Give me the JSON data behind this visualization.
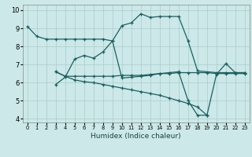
{
  "xlabel": "Humidex (Indice chaleur)",
  "xlim": [
    -0.5,
    23.5
  ],
  "ylim": [
    3.8,
    10.3
  ],
  "xticks": [
    0,
    1,
    2,
    3,
    4,
    5,
    6,
    7,
    8,
    9,
    10,
    11,
    12,
    13,
    14,
    15,
    16,
    17,
    18,
    19,
    20,
    21,
    22,
    23
  ],
  "yticks": [
    4,
    5,
    6,
    7,
    8,
    9,
    10
  ],
  "bg_color": "#cce8e8",
  "grid_color": "#aacccc",
  "line_color": "#1a6060",
  "series": [
    {
      "x": [
        0,
        1,
        2,
        3,
        4,
        5,
        6,
        7,
        8,
        9,
        10,
        11,
        12,
        13,
        14,
        15,
        16,
        17,
        18,
        20,
        21,
        22,
        23
      ],
      "y": [
        9.1,
        8.55,
        8.4,
        8.4,
        8.4,
        8.4,
        8.4,
        8.4,
        8.4,
        8.3,
        9.15,
        9.3,
        9.8,
        9.6,
        9.65,
        9.65,
        9.65,
        8.3,
        6.65,
        6.55,
        6.55,
        6.55,
        6.55
      ]
    },
    {
      "x": [
        3,
        4,
        5,
        6,
        7,
        8,
        9,
        10,
        11,
        12,
        13,
        14,
        15,
        16,
        17,
        18,
        19,
        20,
        21,
        22,
        23
      ],
      "y": [
        5.9,
        6.3,
        7.3,
        7.5,
        7.35,
        7.7,
        8.3,
        6.25,
        6.3,
        6.35,
        6.4,
        6.5,
        6.55,
        6.6,
        5.0,
        4.2,
        4.2,
        6.45,
        7.05,
        6.55,
        6.55
      ]
    },
    {
      "x": [
        3,
        4,
        5,
        6,
        7,
        8,
        9,
        10,
        11,
        12,
        13,
        14,
        15,
        16,
        17,
        18,
        19
      ],
      "y": [
        6.6,
        6.35,
        6.15,
        6.05,
        6.0,
        5.9,
        5.8,
        5.7,
        5.6,
        5.5,
        5.4,
        5.3,
        5.15,
        5.0,
        4.85,
        4.65,
        4.2
      ]
    },
    {
      "x": [
        3,
        4,
        5,
        6,
        7,
        8,
        9,
        10,
        11,
        12,
        13,
        14,
        15,
        16,
        17,
        18,
        19,
        20,
        21,
        22,
        23
      ],
      "y": [
        6.6,
        6.35,
        6.35,
        6.35,
        6.35,
        6.35,
        6.35,
        6.4,
        6.4,
        6.4,
        6.45,
        6.5,
        6.5,
        6.55,
        6.55,
        6.55,
        6.55,
        6.5,
        6.5,
        6.5,
        6.5
      ]
    }
  ]
}
